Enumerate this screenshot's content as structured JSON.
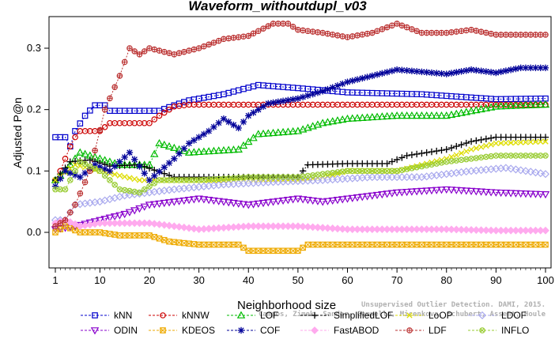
{
  "chart_data": {
    "type": "line",
    "title": "Waveform_withoutdupl_v03",
    "xlabel": "Neighborhood size",
    "ylabel": "Adjusted P@n",
    "xlim": [
      1,
      100
    ],
    "ylim": [
      -0.05,
      0.35
    ],
    "xticks": [
      1,
      10,
      20,
      30,
      40,
      50,
      60,
      70,
      80,
      90,
      100
    ],
    "yticks": [
      0.0,
      0.1,
      0.2,
      0.3
    ],
    "xtick_labels": [
      "1",
      "10",
      "20",
      "30",
      "40",
      "50",
      "60",
      "70",
      "80",
      "90",
      "100"
    ],
    "ytick_labels": [
      "0.0",
      "0.1",
      "0.2",
      "0.3"
    ],
    "grid": false,
    "legend_position": "bottom",
    "series": [
      {
        "name": "kNN",
        "color": "#0000cc",
        "marker": "square",
        "knots": [
          [
            1,
            0.155
          ],
          [
            3,
            0.155
          ],
          [
            4,
            0.14
          ],
          [
            5,
            0.165
          ],
          [
            7,
            0.19
          ],
          [
            9,
            0.207
          ],
          [
            11,
            0.207
          ],
          [
            12,
            0.198
          ],
          [
            22,
            0.198
          ],
          [
            25,
            0.207
          ],
          [
            28,
            0.215
          ],
          [
            35,
            0.225
          ],
          [
            42,
            0.24
          ],
          [
            50,
            0.235
          ],
          [
            60,
            0.228
          ],
          [
            75,
            0.225
          ],
          [
            90,
            0.217
          ],
          [
            100,
            0.218
          ]
        ]
      },
      {
        "name": "kNNW",
        "color": "#cc0000",
        "marker": "circle",
        "knots": [
          [
            1,
            0.085
          ],
          [
            2,
            0.1
          ],
          [
            4,
            0.14
          ],
          [
            5,
            0.155
          ],
          [
            6,
            0.165
          ],
          [
            10,
            0.165
          ],
          [
            12,
            0.178
          ],
          [
            20,
            0.178
          ],
          [
            22,
            0.19
          ],
          [
            25,
            0.205
          ],
          [
            28,
            0.208
          ],
          [
            100,
            0.208
          ]
        ]
      },
      {
        "name": "LOF",
        "color": "#00bb00",
        "marker": "triangle-up",
        "knots": [
          [
            1,
            0.085
          ],
          [
            3,
            0.1
          ],
          [
            6,
            0.13
          ],
          [
            10,
            0.12
          ],
          [
            14,
            0.11
          ],
          [
            20,
            0.11
          ],
          [
            22,
            0.145
          ],
          [
            28,
            0.13
          ],
          [
            38,
            0.135
          ],
          [
            42,
            0.16
          ],
          [
            50,
            0.165
          ],
          [
            55,
            0.178
          ],
          [
            60,
            0.185
          ],
          [
            70,
            0.19
          ],
          [
            80,
            0.19
          ],
          [
            90,
            0.205
          ],
          [
            100,
            0.208
          ]
        ]
      },
      {
        "name": "SimplifiedLOF",
        "color": "#000000",
        "marker": "plus",
        "knots": [
          [
            1,
            0.085
          ],
          [
            4,
            0.115
          ],
          [
            8,
            0.118
          ],
          [
            12,
            0.108
          ],
          [
            18,
            0.11
          ],
          [
            25,
            0.09
          ],
          [
            50,
            0.09
          ],
          [
            52,
            0.11
          ],
          [
            60,
            0.112
          ],
          [
            68,
            0.112
          ],
          [
            72,
            0.125
          ],
          [
            80,
            0.135
          ],
          [
            85,
            0.148
          ],
          [
            90,
            0.155
          ],
          [
            100,
            0.155
          ]
        ]
      },
      {
        "name": "LoOP",
        "color": "#dddd00",
        "marker": "x",
        "knots": [
          [
            1,
            0.085
          ],
          [
            5,
            0.11
          ],
          [
            10,
            0.1
          ],
          [
            18,
            0.085
          ],
          [
            25,
            0.085
          ],
          [
            50,
            0.085
          ],
          [
            55,
            0.09
          ],
          [
            60,
            0.1
          ],
          [
            70,
            0.1
          ],
          [
            80,
            0.12
          ],
          [
            85,
            0.135
          ],
          [
            90,
            0.145
          ],
          [
            100,
            0.148
          ]
        ]
      },
      {
        "name": "LDOF",
        "color": "#aaaaee",
        "marker": "diamond",
        "knots": [
          [
            1,
            0.02
          ],
          [
            3,
            0.02
          ],
          [
            5,
            0.045
          ],
          [
            10,
            0.05
          ],
          [
            15,
            0.06
          ],
          [
            25,
            0.07
          ],
          [
            35,
            0.078
          ],
          [
            45,
            0.082
          ],
          [
            55,
            0.085
          ],
          [
            65,
            0.09
          ],
          [
            75,
            0.09
          ],
          [
            85,
            0.1
          ],
          [
            92,
            0.105
          ],
          [
            100,
            0.095
          ]
        ]
      },
      {
        "name": "ODIN",
        "color": "#8800cc",
        "marker": "triangle-down",
        "knots": [
          [
            1,
            0.005
          ],
          [
            5,
            0.01
          ],
          [
            10,
            0.02
          ],
          [
            15,
            0.03
          ],
          [
            20,
            0.045
          ],
          [
            25,
            0.05
          ],
          [
            30,
            0.055
          ],
          [
            35,
            0.05
          ],
          [
            40,
            0.045
          ],
          [
            45,
            0.05
          ],
          [
            50,
            0.055
          ],
          [
            55,
            0.05
          ],
          [
            60,
            0.055
          ],
          [
            65,
            0.06
          ],
          [
            70,
            0.065
          ],
          [
            80,
            0.07
          ],
          [
            90,
            0.065
          ],
          [
            100,
            0.062
          ]
        ]
      },
      {
        "name": "KDEOS",
        "color": "#eeaa00",
        "marker": "square-x",
        "knots": [
          [
            1,
            0.0
          ],
          [
            3,
            0.01
          ],
          [
            6,
            0.0
          ],
          [
            10,
            0.0
          ],
          [
            14,
            -0.005
          ],
          [
            20,
            -0.005
          ],
          [
            24,
            -0.015
          ],
          [
            30,
            -0.02
          ],
          [
            38,
            -0.02
          ],
          [
            40,
            -0.03
          ],
          [
            50,
            -0.03
          ],
          [
            52,
            -0.02
          ],
          [
            60,
            -0.02
          ],
          [
            70,
            -0.02
          ],
          [
            80,
            -0.02
          ],
          [
            90,
            -0.02
          ],
          [
            100,
            -0.02
          ]
        ]
      },
      {
        "name": "COF",
        "color": "#000099",
        "marker": "star",
        "knots": [
          [
            1,
            0.075
          ],
          [
            3,
            0.1
          ],
          [
            6,
            0.09
          ],
          [
            9,
            0.11
          ],
          [
            12,
            0.1
          ],
          [
            16,
            0.13
          ],
          [
            20,
            0.085
          ],
          [
            25,
            0.12
          ],
          [
            28,
            0.145
          ],
          [
            32,
            0.165
          ],
          [
            35,
            0.185
          ],
          [
            38,
            0.17
          ],
          [
            40,
            0.19
          ],
          [
            44,
            0.21
          ],
          [
            50,
            0.218
          ],
          [
            55,
            0.23
          ],
          [
            60,
            0.245
          ],
          [
            65,
            0.255
          ],
          [
            70,
            0.265
          ],
          [
            80,
            0.258
          ],
          [
            85,
            0.265
          ],
          [
            90,
            0.26
          ],
          [
            95,
            0.268
          ],
          [
            100,
            0.268
          ]
        ]
      },
      {
        "name": "FastABOD",
        "color": "#ffaaee",
        "marker": "diamond-filled",
        "knots": [
          [
            1,
            0.015
          ],
          [
            3,
            0.02
          ],
          [
            6,
            0.01
          ],
          [
            10,
            0.015
          ],
          [
            20,
            0.015
          ],
          [
            30,
            0.005
          ],
          [
            40,
            0.01
          ],
          [
            50,
            0.01
          ],
          [
            60,
            0.005
          ],
          [
            70,
            0.005
          ],
          [
            80,
            0.005
          ],
          [
            90,
            0.003
          ],
          [
            100,
            0.003
          ]
        ]
      },
      {
        "name": "LDF",
        "color": "#bb3333",
        "marker": "circle-plus",
        "knots": [
          [
            1,
            0.01
          ],
          [
            3,
            0.02
          ],
          [
            5,
            0.045
          ],
          [
            8,
            0.1
          ],
          [
            11,
            0.2
          ],
          [
            14,
            0.255
          ],
          [
            16,
            0.3
          ],
          [
            18,
            0.29
          ],
          [
            20,
            0.3
          ],
          [
            25,
            0.29
          ],
          [
            30,
            0.3
          ],
          [
            35,
            0.315
          ],
          [
            40,
            0.32
          ],
          [
            45,
            0.34
          ],
          [
            48,
            0.34
          ],
          [
            50,
            0.33
          ],
          [
            55,
            0.325
          ],
          [
            60,
            0.318
          ],
          [
            65,
            0.325
          ],
          [
            70,
            0.34
          ],
          [
            75,
            0.325
          ],
          [
            80,
            0.325
          ],
          [
            85,
            0.33
          ],
          [
            90,
            0.322
          ],
          [
            100,
            0.322
          ]
        ]
      },
      {
        "name": "INFLO",
        "color": "#99cc33",
        "marker": "circle-x",
        "knots": [
          [
            1,
            0.07
          ],
          [
            3,
            0.07
          ],
          [
            6,
            0.115
          ],
          [
            10,
            0.1
          ],
          [
            14,
            0.07
          ],
          [
            18,
            0.065
          ],
          [
            22,
            0.085
          ],
          [
            30,
            0.085
          ],
          [
            40,
            0.09
          ],
          [
            50,
            0.09
          ],
          [
            60,
            0.1
          ],
          [
            70,
            0.1
          ],
          [
            80,
            0.115
          ],
          [
            90,
            0.125
          ],
          [
            100,
            0.125
          ]
        ]
      }
    ]
  },
  "watermark": {
    "line1": "Unsupervised Outlier Detection. DAMI, 2015.",
    "line2": "Campos, Zimek, Sander, Campello, Micenkova, Schubert, Assent, Houle"
  }
}
